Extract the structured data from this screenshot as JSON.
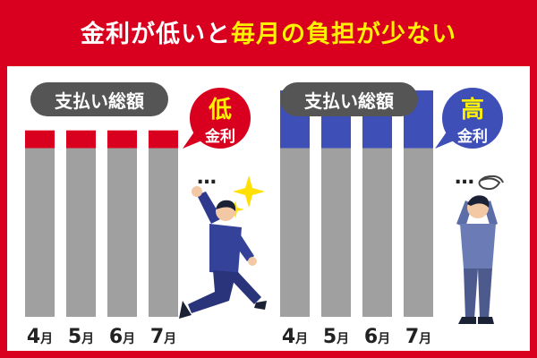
{
  "header": {
    "title_part1": "金利が低いと",
    "title_part2": "毎月の負担が少ない"
  },
  "colors": {
    "background": "#d8001e",
    "title_highlight": "#fff200",
    "bar_gray": "#a0a0a0",
    "low_rate_segment": "#d8001e",
    "high_rate_segment": "#3f4fb8",
    "pill": "#555555"
  },
  "chart_data": [
    {
      "type": "bar",
      "stacked": true,
      "label": "支払い総額",
      "categories": [
        "4月",
        "5月",
        "6月",
        "7月"
      ],
      "series": [
        {
          "values": [
            76,
            76,
            76,
            76
          ]
        },
        {
          "values": [
            8,
            8,
            8,
            8
          ]
        }
      ],
      "ylim": [
        0,
        100
      ],
      "bubble": {
        "big": "低",
        "small": "金利"
      },
      "continuation": "…",
      "figure": "happy-running-man"
    },
    {
      "type": "bar",
      "stacked": true,
      "label": "支払い総額",
      "categories": [
        "4月",
        "5月",
        "6月",
        "7月"
      ],
      "series": [
        {
          "values": [
            76,
            76,
            76,
            76
          ]
        },
        {
          "values": [
            26,
            26,
            26,
            26
          ]
        }
      ],
      "ylim": [
        0,
        100
      ],
      "bubble": {
        "big": "高",
        "small": "金利"
      },
      "continuation": "…",
      "figure": "troubled-man"
    }
  ]
}
